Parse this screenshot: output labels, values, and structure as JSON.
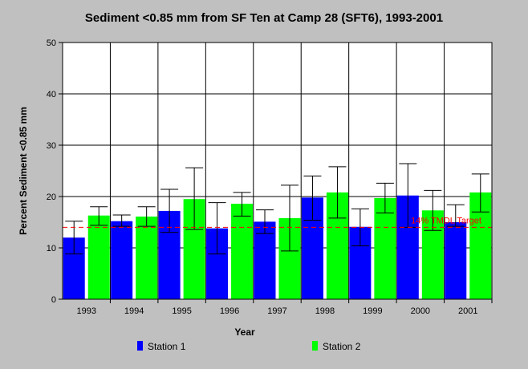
{
  "colors": {
    "background": "#c0c0c0",
    "plot_background": "#ffffff",
    "grid": "#000000",
    "station1": "#0000ff",
    "station2": "#00ff00",
    "target_line": "#ff0000"
  },
  "chart_data": {
    "type": "bar",
    "title": "Sediment <0.85 mm from SF Ten at Camp 28 (SFT6), 1993-2001",
    "xlabel": "Year",
    "ylabel": "Percent Sediment <0.85 mm",
    "ylim": [
      0,
      50
    ],
    "yticks": [
      0,
      10,
      20,
      30,
      40,
      50
    ],
    "grid": true,
    "legend_position": "bottom",
    "categories": [
      "1993",
      "1994",
      "1995",
      "1996",
      "1997",
      "1998",
      "1999",
      "2000",
      "2001"
    ],
    "series": [
      {
        "name": "Station 1",
        "color": "#0000ff",
        "values": [
          12.0,
          15.2,
          17.2,
          13.8,
          15.1,
          19.8,
          14.1,
          20.2,
          15.0
        ],
        "error_low": [
          8.8,
          14.2,
          13.0,
          8.8,
          12.8,
          15.4,
          10.4,
          14.0,
          14.2
        ],
        "error_high": [
          15.2,
          16.4,
          21.4,
          18.8,
          17.4,
          24.0,
          17.6,
          26.4,
          18.4
        ]
      },
      {
        "name": "Station 2",
        "color": "#00ff00",
        "values": [
          16.3,
          16.1,
          19.5,
          18.6,
          15.8,
          20.8,
          19.7,
          17.3,
          20.8
        ],
        "error_low": [
          14.4,
          14.2,
          13.6,
          16.2,
          9.4,
          15.8,
          16.8,
          13.4,
          17.0
        ],
        "error_high": [
          18.0,
          18.0,
          25.6,
          20.8,
          22.2,
          25.8,
          22.6,
          21.2,
          24.4
        ]
      }
    ],
    "reference_line": {
      "value": 14,
      "label": "14% TMDL Target"
    }
  }
}
